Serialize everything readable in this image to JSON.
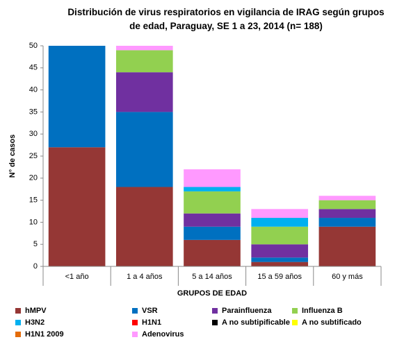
{
  "chart_data": {
    "type": "stacked_bar",
    "title": "Distribución de virus respiratorios en vigilancia de IRAG según grupos de edad, Paraguay, SE 1 a 23, 2014  (n= 188)",
    "x_label": "GRUPOS DE EDAD",
    "y_label": "N° de casos",
    "categories": [
      "<1 año",
      "1 a 4 años",
      "5 a 14 años",
      "15 a 59 años",
      "60 y más"
    ],
    "series": [
      {
        "name": "hMPV",
        "color": "#953735",
        "values": [
          27,
          18,
          6,
          1,
          9
        ]
      },
      {
        "name": "VSR",
        "color": "#0070c0",
        "values": [
          23,
          17,
          3,
          1,
          2
        ]
      },
      {
        "name": "Parainfluenza",
        "color": "#7030a0",
        "values": [
          0,
          9,
          3,
          3,
          2
        ]
      },
      {
        "name": "Influenza  B",
        "color": "#92d050",
        "values": [
          0,
          5,
          5,
          4,
          2
        ]
      },
      {
        "name": "H3N2",
        "color": "#00b0f0",
        "values": [
          0,
          0,
          1,
          2,
          0
        ]
      },
      {
        "name": "H1N1",
        "color": "#ff0000",
        "values": [
          0,
          0,
          0,
          0,
          0
        ]
      },
      {
        "name": "A no subtipificable",
        "color": "#000000",
        "values": [
          0,
          0,
          0,
          0,
          0
        ]
      },
      {
        "name": "A no subtificado",
        "color": "#ffff00",
        "values": [
          0,
          0,
          0,
          0,
          0
        ]
      },
      {
        "name": "H1N1 2009",
        "color": "#e46c0a",
        "values": [
          0,
          0,
          0,
          0,
          0
        ]
      },
      {
        "name": "Adenovirus",
        "color": "#ff99ff",
        "values": [
          0,
          1,
          4,
          2,
          1
        ]
      }
    ],
    "ylim": [
      0,
      50
    ],
    "yticks": [
      0,
      5,
      10,
      15,
      20,
      25,
      30,
      35,
      40,
      45,
      50
    ],
    "grid": false
  }
}
